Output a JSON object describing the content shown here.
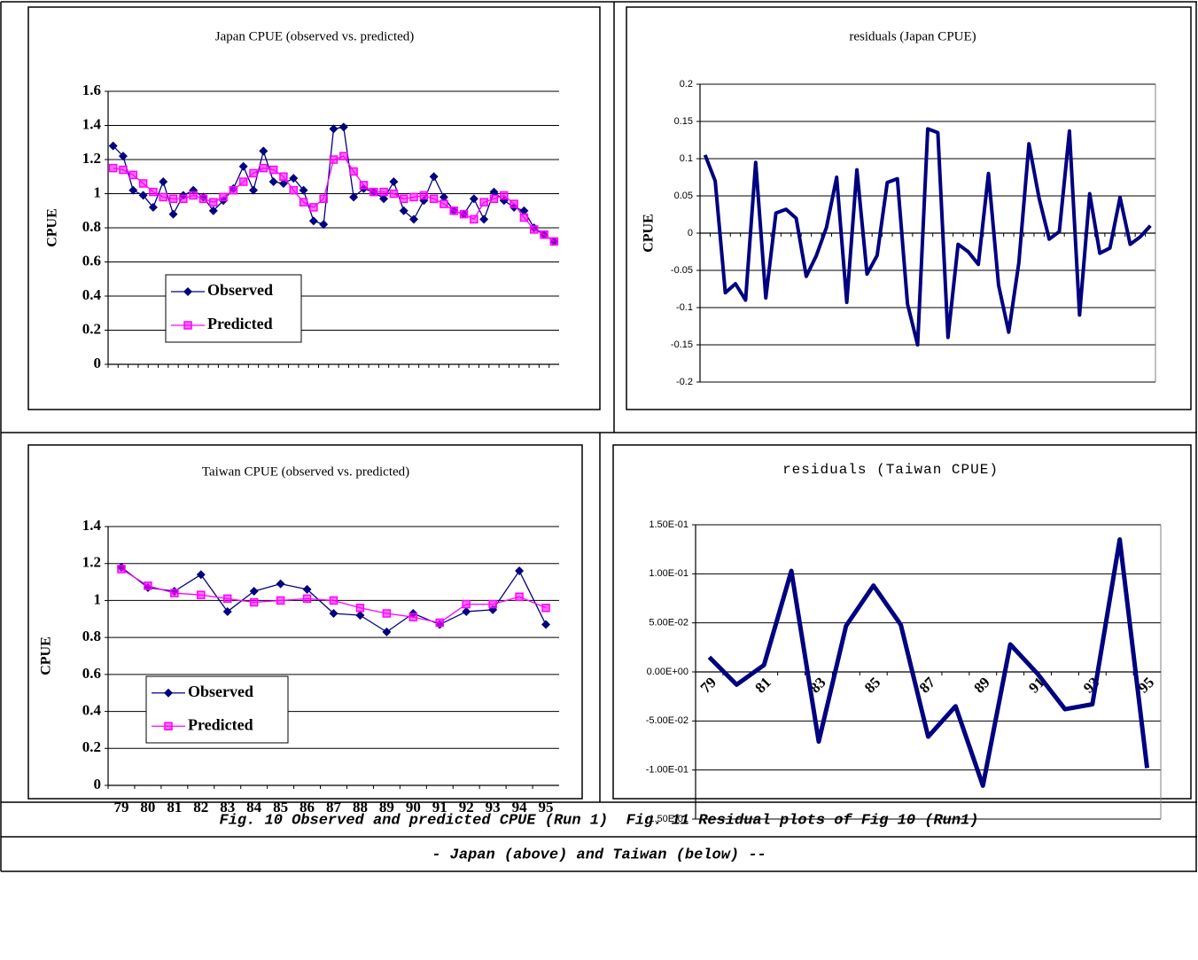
{
  "chart_data": [
    {
      "type": "line",
      "title": "Japan CPUE (observed vs. predicted)",
      "y_label": "CPUE",
      "categories": [
        null,
        null,
        null,
        null,
        null,
        null,
        null,
        null,
        null,
        null,
        null,
        null,
        null,
        null,
        null,
        null,
        null,
        null,
        null,
        null,
        null,
        null,
        null,
        null,
        null,
        null,
        null,
        null,
        null,
        null,
        null,
        null,
        null,
        null,
        null,
        null,
        null,
        null,
        null,
        null,
        null,
        null,
        null,
        null,
        null
      ],
      "series": [
        {
          "name": "Observed",
          "color": "#000080",
          "marker": "diamond",
          "values": [
            1.28,
            1.22,
            1.02,
            0.99,
            0.92,
            1.07,
            0.88,
            0.99,
            1.02,
            0.98,
            0.9,
            0.96,
            1.03,
            1.16,
            1.02,
            1.25,
            1.07,
            1.06,
            1.09,
            1.02,
            0.84,
            0.82,
            1.38,
            1.39,
            0.98,
            1.03,
            1.01,
            0.97,
            1.07,
            0.9,
            0.85,
            0.96,
            1.1,
            0.98,
            0.9,
            0.88,
            0.97,
            0.85,
            1.01,
            0.96,
            0.92,
            0.9,
            0.8,
            0.76,
            0.72
          ]
        },
        {
          "name": "Predicted",
          "color": "#ff00ff",
          "marker": "square",
          "values": [
            1.15,
            1.14,
            1.11,
            1.06,
            1.01,
            0.98,
            0.97,
            0.97,
            0.99,
            0.97,
            0.95,
            0.98,
            1.02,
            1.07,
            1.12,
            1.15,
            1.14,
            1.1,
            1.02,
            0.95,
            0.92,
            0.97,
            1.2,
            1.22,
            1.13,
            1.05,
            1.01,
            1.01,
            1.0,
            0.97,
            0.98,
            0.99,
            0.97,
            0.94,
            0.9,
            0.88,
            0.85,
            0.95,
            0.97,
            0.99,
            0.94,
            0.86,
            0.79,
            0.76,
            0.72
          ]
        }
      ],
      "ylim": [
        0,
        1.6
      ],
      "yticks": [
        0,
        0.2,
        0.4,
        0.6,
        0.8,
        1,
        1.2,
        1.4,
        1.6
      ],
      "grid": true
    },
    {
      "type": "line",
      "title": "residuals (Japan CPUE)",
      "y_label": "CPUE",
      "categories": [
        null,
        null,
        null,
        null,
        null,
        null,
        null,
        null,
        null,
        null,
        null,
        null,
        null,
        null,
        null,
        null,
        null,
        null,
        null,
        null,
        null,
        null,
        null,
        null,
        null,
        null,
        null,
        null,
        null,
        null,
        null,
        null,
        null,
        null,
        null,
        null,
        null,
        null,
        null,
        null,
        null,
        null,
        null,
        null,
        null
      ],
      "color": "#000080",
      "values": [
        0.105,
        0.07,
        -0.08,
        -0.068,
        -0.09,
        0.095,
        -0.087,
        0.027,
        0.032,
        0.02,
        -0.058,
        -0.03,
        0.008,
        0.075,
        -0.093,
        0.085,
        -0.055,
        -0.03,
        0.068,
        0.073,
        -0.095,
        -0.15,
        0.14,
        0.135,
        -0.14,
        -0.015,
        -0.025,
        -0.042,
        0.08,
        -0.07,
        -0.133,
        -0.04,
        0.12,
        0.047,
        -0.008,
        0.002,
        0.137,
        -0.11,
        0.053,
        -0.027,
        -0.02,
        0.048,
        -0.015,
        -0.005,
        0.01
      ],
      "ylim": [
        -0.2,
        0.2
      ],
      "yticks": [
        -0.2,
        -0.15,
        -0.1,
        -0.05,
        0,
        0.05,
        0.1,
        0.15,
        0.2
      ],
      "grid": true
    },
    {
      "type": "line",
      "title": "Taiwan CPUE (observed vs. predicted)",
      "y_label": "CPUE",
      "categories": [
        "79",
        "80",
        "81",
        "82",
        "83",
        "84",
        "85",
        "86",
        "87",
        "88",
        "89",
        "90",
        "91",
        "92",
        "93",
        "94",
        "95"
      ],
      "series": [
        {
          "name": "Observed",
          "color": "#000080",
          "marker": "diamond",
          "values": [
            1.18,
            1.07,
            1.05,
            1.14,
            0.94,
            1.05,
            1.09,
            1.06,
            0.93,
            0.92,
            0.83,
            0.93,
            0.87,
            0.94,
            0.95,
            1.16,
            0.87
          ]
        },
        {
          "name": "Predicted",
          "color": "#ff00ff",
          "marker": "square",
          "values": [
            1.17,
            1.08,
            1.04,
            1.03,
            1.01,
            0.99,
            1.0,
            1.01,
            1.0,
            0.96,
            0.93,
            0.91,
            0.88,
            0.98,
            0.98,
            1.02,
            0.96
          ]
        }
      ],
      "ylim": [
        0,
        1.4
      ],
      "yticks": [
        0,
        0.2,
        0.4,
        0.6,
        0.8,
        1,
        1.2,
        1.4
      ],
      "grid": true
    },
    {
      "type": "line",
      "title": "residuals (Taiwan CPUE)",
      "categories": [
        "79",
        null,
        "81",
        null,
        "83",
        null,
        "85",
        null,
        "87",
        null,
        "89",
        null,
        "91",
        null,
        "93",
        null,
        "95"
      ],
      "color": "#000080",
      "values": [
        0.015,
        -0.013,
        0.007,
        0.103,
        -0.071,
        0.047,
        0.088,
        0.048,
        -0.066,
        -0.035,
        -0.116,
        0.028,
        -0.002,
        -0.038,
        -0.033,
        0.135,
        -0.098
      ],
      "ylim": [
        -0.15,
        0.15
      ],
      "yticks": [
        {
          "value": -0.15,
          "label": "-1.50E-01"
        },
        {
          "value": -0.1,
          "label": "-1.00E-01"
        },
        {
          "value": -0.05,
          "label": "-5.00E-02"
        },
        {
          "value": 0,
          "label": "0.00E+00"
        },
        {
          "value": 0.05,
          "label": "5.00E-02"
        },
        {
          "value": 0.1,
          "label": "1.00E-01"
        },
        {
          "value": 0.15,
          "label": "1.50E-01"
        }
      ],
      "grid": true
    }
  ],
  "captions": [
    "Fig. 10 Observed and predicted CPUE (Run 1)  Fig. 11 Residual plots of Fig 10 (Run1)",
    "- Japan (above) and Taiwan (below) --"
  ]
}
